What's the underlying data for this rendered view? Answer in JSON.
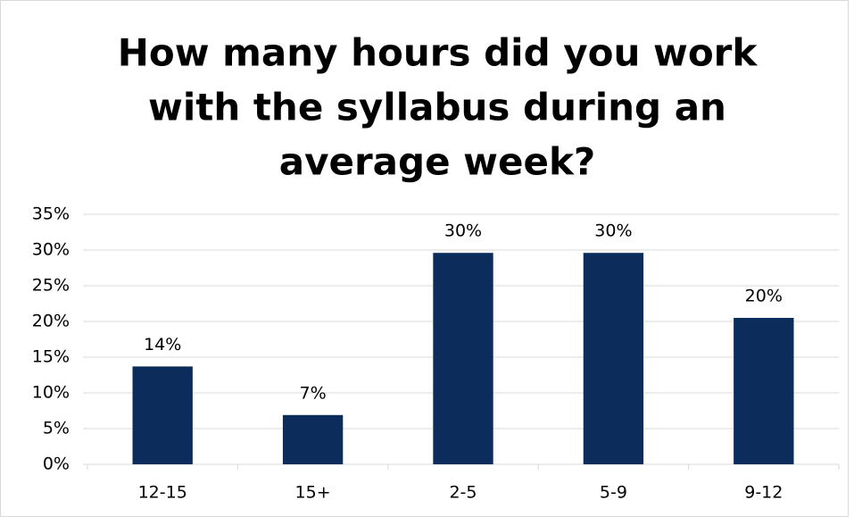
{
  "chart_data": {
    "type": "bar",
    "title": [
      "How many hours did you work",
      "with the syllabus during an",
      "average week?"
    ],
    "categories": [
      "12-15",
      "15+",
      "2-5",
      "5-9",
      "9-12"
    ],
    "values": [
      13.7,
      6.9,
      29.6,
      29.6,
      20.5
    ],
    "value_labels": [
      "14%",
      "7%",
      "30%",
      "30%",
      "20%"
    ],
    "color": "#0c2c5c",
    "ylim": [
      0,
      35
    ],
    "yticks": [
      {
        "value": 0,
        "label": "0%"
      },
      {
        "value": 5,
        "label": "5%"
      },
      {
        "value": 10,
        "label": "10%"
      },
      {
        "value": 15,
        "label": "15%"
      },
      {
        "value": 20,
        "label": "20%"
      },
      {
        "value": 25,
        "label": "25%"
      },
      {
        "value": 30,
        "label": "30%"
      },
      {
        "value": 35,
        "label": "35%"
      }
    ],
    "grid": true
  }
}
